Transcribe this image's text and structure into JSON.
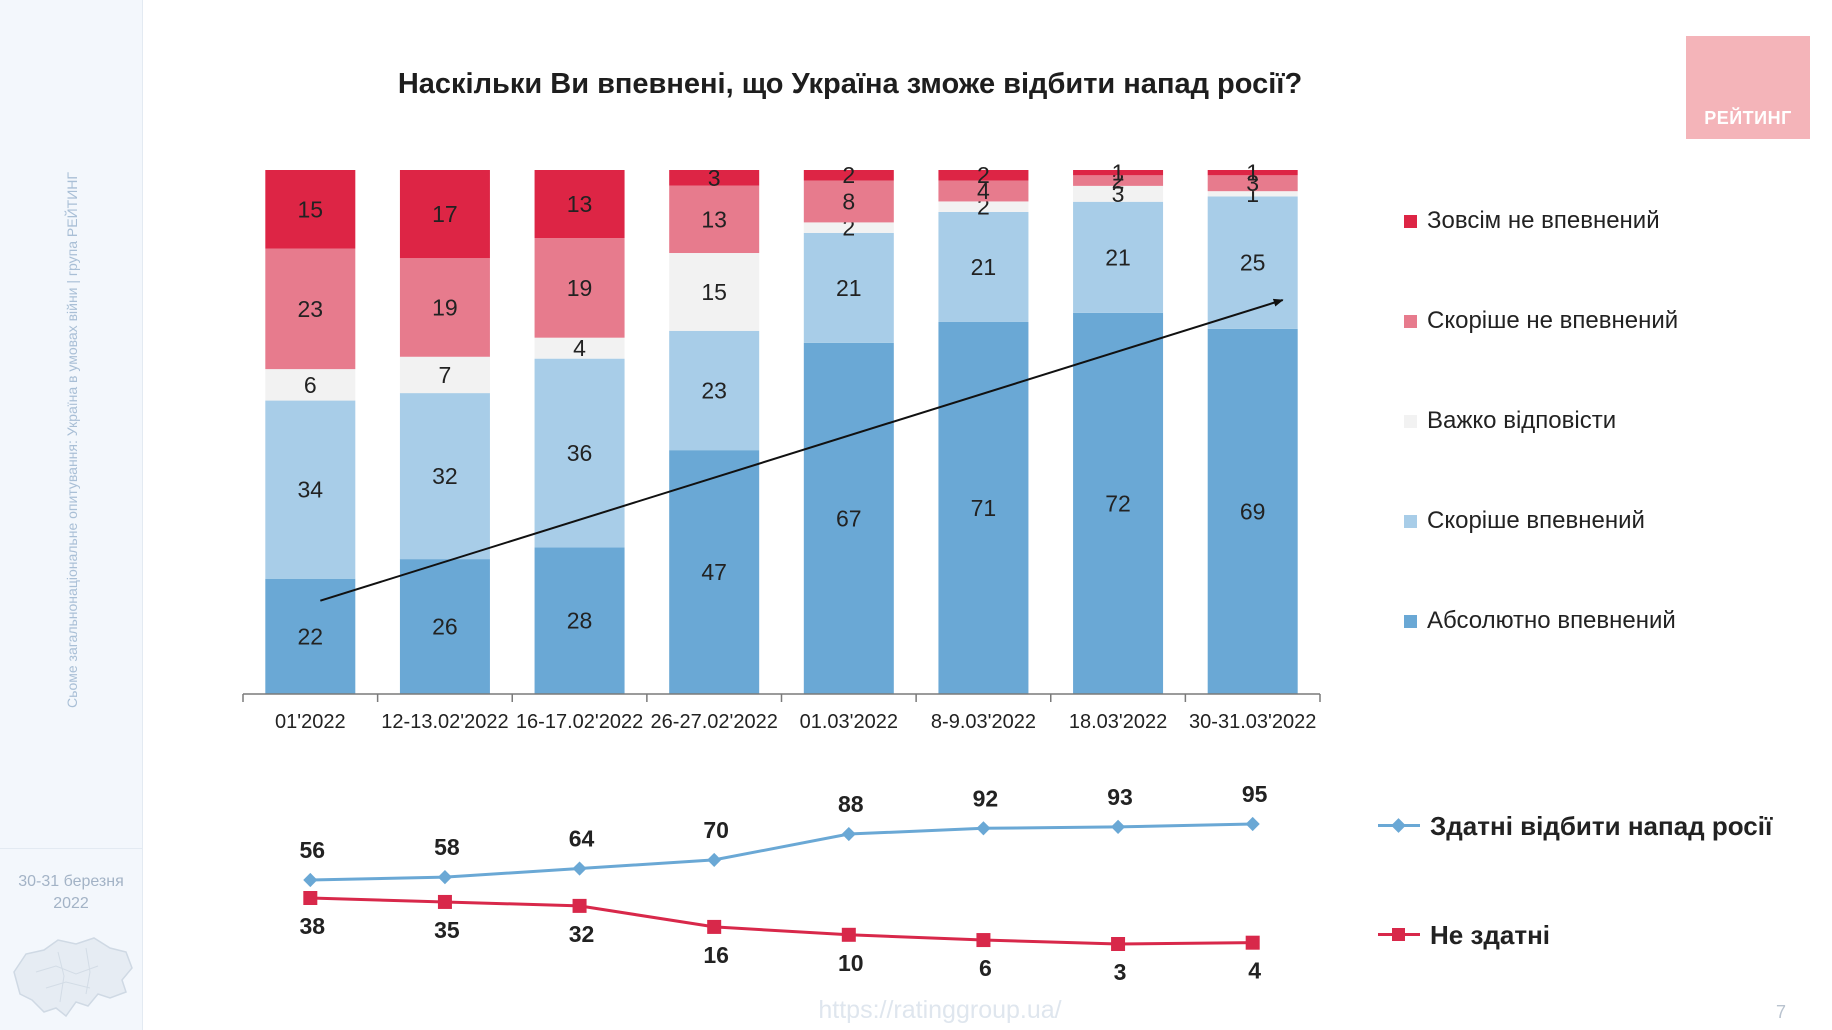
{
  "sidebar": {
    "caption": "Сьоме загальнонаціональне опитування: Україна в умовах війни | група РЕЙТИНГ",
    "date_line1": "30-31 березня",
    "date_line2": "2022"
  },
  "title": "Наскільки Ви впевнені, що Україна зможе відбити напад росії?",
  "logo": "РЕЙТИНГ",
  "url": "https://ratinggroup.ua/",
  "page_number": "7",
  "colors": {
    "abs_confident": "#6aa8d5",
    "rather_confident": "#a8cde8",
    "hard_to_say": "#f2f2f2",
    "rather_not": "#e77b8d",
    "not_at_all": "#dd2545",
    "able_line": "#6aa8d5",
    "unable_line": "#d8284a"
  },
  "chart_data": [
    {
      "type": "bar",
      "stacked": true,
      "categories": [
        "01'2022",
        "12-13.02'2022",
        "16-17.02'2022",
        "26-27.02'2022",
        "01.03'2022",
        "8-9.03'2022",
        "18.03'2022",
        "30-31.03'2022"
      ],
      "ylim": [
        0,
        100
      ],
      "series": [
        {
          "name": "Абсолютно впевнений",
          "color": "#6aa8d5",
          "values": [
            22,
            26,
            28,
            47,
            67,
            71,
            72,
            69
          ]
        },
        {
          "name": "Скоріше впевнений",
          "color": "#a8cde8",
          "values": [
            34,
            32,
            36,
            23,
            21,
            21,
            21,
            25
          ]
        },
        {
          "name": "Важко відповісти",
          "color": "#f2f2f2",
          "values": [
            6,
            7,
            4,
            15,
            2,
            2,
            3,
            1
          ]
        },
        {
          "name": "Скоріше не впевнений",
          "color": "#e77b8d",
          "values": [
            23,
            19,
            19,
            13,
            8,
            4,
            2,
            3
          ]
        },
        {
          "name": "Зовсім не впевнений",
          "color": "#dd2545",
          "values": [
            15,
            17,
            13,
            3,
            2,
            2,
            1,
            1
          ]
        }
      ],
      "legend_order": [
        "Зовсім не впевнений",
        "Скоріше не впевнений",
        "Важко відповісти",
        "Скоріше впевнений",
        "Абсолютно впевнений"
      ],
      "legend_position": "right",
      "trend_arrow": true
    },
    {
      "type": "line",
      "categories": [
        "01'2022",
        "12-13.02'2022",
        "16-17.02'2022",
        "26-27.02'2022",
        "01.03'2022",
        "8-9.03'2022",
        "18.03'2022",
        "30-31.03'2022"
      ],
      "series": [
        {
          "name": "Здатні відбити напад росії",
          "color": "#6aa8d5",
          "marker": "diamond",
          "values": [
            56,
            58,
            64,
            70,
            88,
            92,
            93,
            95
          ]
        },
        {
          "name": "Не здатні",
          "color": "#d8284a",
          "marker": "square",
          "values": [
            38,
            35,
            32,
            16,
            10,
            6,
            3,
            4
          ]
        }
      ],
      "legend_position": "right"
    }
  ]
}
